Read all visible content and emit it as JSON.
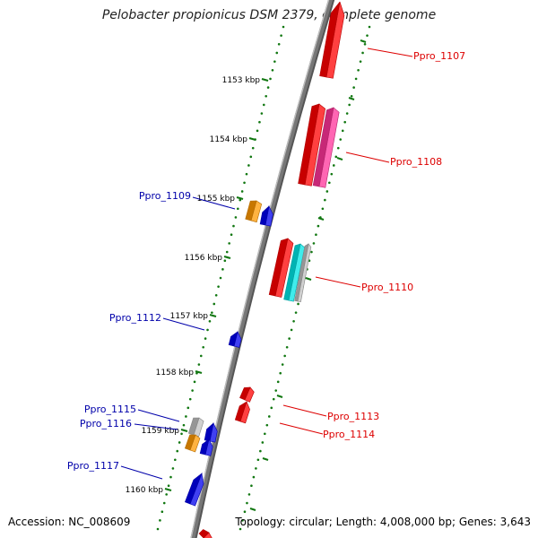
{
  "title": "Pelobacter propionicus DSM 2379, complete genome",
  "footer": {
    "accession": "Accession: NC_008609",
    "stats": "Topology: circular; Length: 4,008,000 bp; Genes: 3,643"
  },
  "scale_ticks": [
    {
      "label": "1153 kbp"
    },
    {
      "label": "1154 kbp"
    },
    {
      "label": "1155 kbp"
    },
    {
      "label": "1156 kbp"
    },
    {
      "label": "1157 kbp"
    },
    {
      "label": "1158 kbp"
    },
    {
      "label": "1159 kbp"
    },
    {
      "label": "1160 kbp"
    }
  ],
  "gene_labels": [
    {
      "text": "Ppro_1107",
      "color": "#dd0000"
    },
    {
      "text": "Ppro_1108",
      "color": "#dd0000"
    },
    {
      "text": "Ppro_1109",
      "color": "#0000aa"
    },
    {
      "text": "Ppro_1110",
      "color": "#dd0000"
    },
    {
      "text": "Ppro_1112",
      "color": "#0000aa"
    },
    {
      "text": "Ppro_1113",
      "color": "#dd0000"
    },
    {
      "text": "Ppro_1114",
      "color": "#dd0000"
    },
    {
      "text": "Ppro_1115",
      "color": "#0000aa"
    },
    {
      "text": "Ppro_1116",
      "color": "#0000aa"
    },
    {
      "text": "Ppro_1117",
      "color": "#0000aa"
    }
  ],
  "colors": {
    "backbone": "#777777",
    "forward_gene": "#ff0000",
    "reverse_gene": "#0000ee",
    "pink_gene": "#ff3399",
    "orange_gene": "#ff9900",
    "cyan_gene": "#00e5e5",
    "gray_gene": "#c0c0c0",
    "tick_dots": "#117711"
  }
}
